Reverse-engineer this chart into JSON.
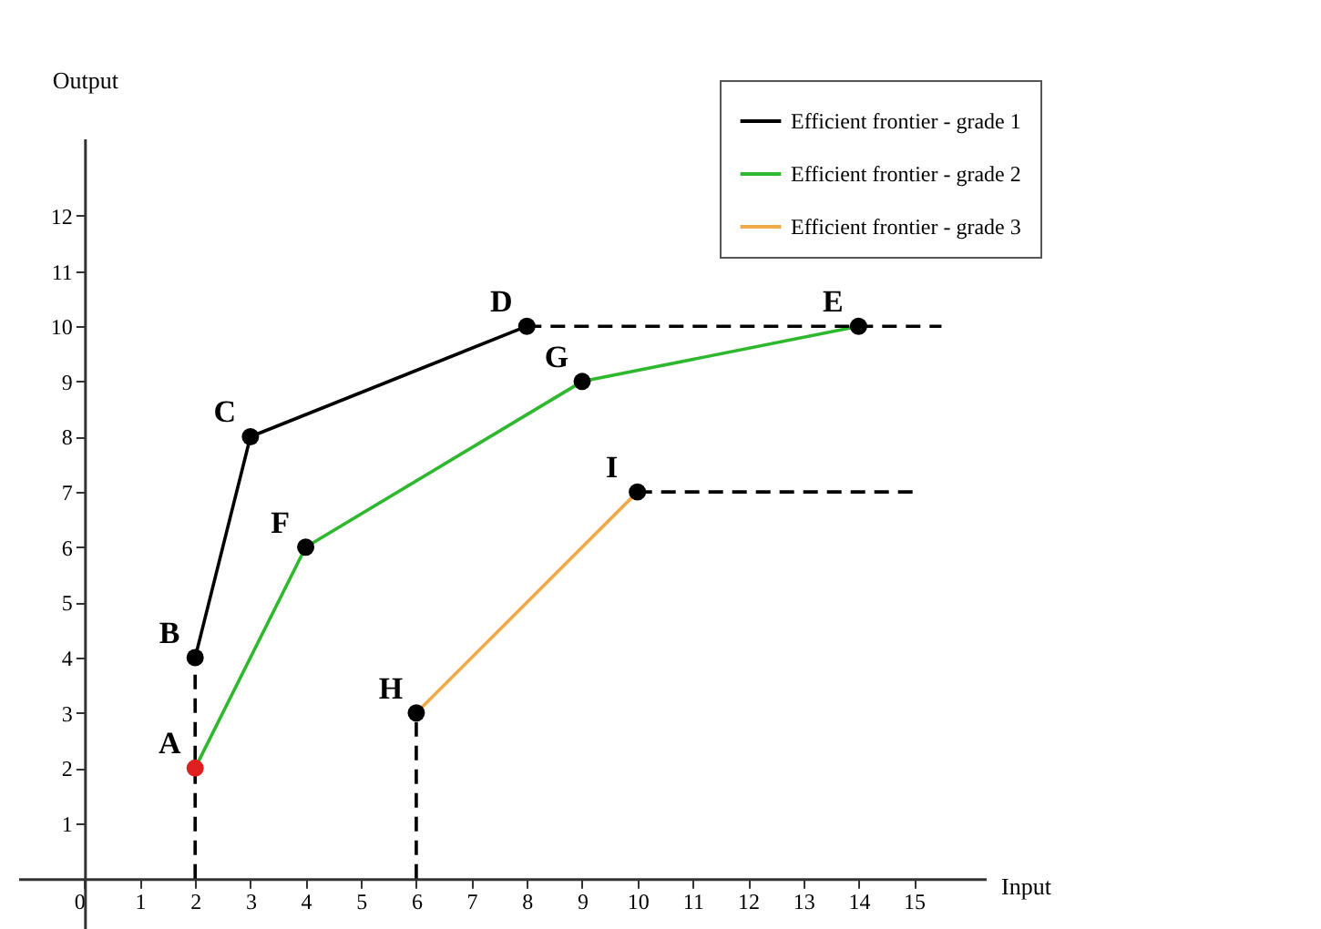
{
  "chart_data": {
    "type": "line",
    "xlabel": "Input",
    "ylabel": "Output",
    "xlim": [
      -1.2,
      16.3
    ],
    "ylim": [
      -2.1,
      13.4
    ],
    "xticks": [
      0,
      1,
      2,
      3,
      4,
      5,
      6,
      7,
      8,
      9,
      10,
      11,
      12,
      13,
      14,
      15
    ],
    "yticks": [
      1,
      2,
      3,
      4,
      5,
      6,
      7,
      8,
      9,
      10,
      11,
      12
    ],
    "legend": "top right",
    "series": [
      {
        "name": "Efficient frontier - grade 1",
        "color": "#000000",
        "x": [
          2,
          3,
          8
        ],
        "values": [
          4,
          8,
          10
        ]
      },
      {
        "name": "Efficient frontier - grade 2",
        "color": "#2db82d",
        "x": [
          2,
          4,
          9,
          14
        ],
        "values": [
          2,
          6,
          9,
          10
        ]
      },
      {
        "name": "Efficient frontier - grade 3",
        "color": "#f0a848",
        "x": [
          6,
          10
        ],
        "values": [
          3,
          7
        ]
      },
      {
        "type": "line",
        "color": "#000000",
        "line_style": "dashed",
        "x": [
          2,
          2
        ],
        "values": [
          0,
          4
        ]
      },
      {
        "type": "line",
        "color": "#000000",
        "line_style": "dashed",
        "x": [
          8,
          15.5
        ],
        "values": [
          10,
          10
        ]
      },
      {
        "type": "line",
        "color": "#000000",
        "line_style": "dashed",
        "x": [
          6,
          6
        ],
        "values": [
          0,
          3
        ]
      },
      {
        "type": "line",
        "color": "#000000",
        "line_style": "dashed",
        "x": [
          10,
          15
        ],
        "values": [
          7,
          7
        ]
      },
      {
        "type": "scatter",
        "x": [
          2,
          2,
          3,
          8,
          14,
          4,
          9,
          6,
          10
        ],
        "values": [
          2,
          4,
          8,
          10,
          10,
          6,
          9,
          3,
          7
        ],
        "colors": [
          "#e02020",
          "#000000",
          "#000000",
          "#000000",
          "#000000",
          "#000000",
          "#000000",
          "#000000",
          "#000000"
        ]
      }
    ],
    "annotations": [
      {
        "text": "A",
        "x": 2,
        "y": 2
      },
      {
        "text": "B",
        "x": 2,
        "y": 4
      },
      {
        "text": "C",
        "x": 3,
        "y": 8
      },
      {
        "text": "D",
        "x": 8,
        "y": 10
      },
      {
        "text": "E",
        "x": 14,
        "y": 10
      },
      {
        "text": "F",
        "x": 4,
        "y": 6
      },
      {
        "text": "G",
        "x": 9,
        "y": 9
      },
      {
        "text": "H",
        "x": 6,
        "y": 3
      },
      {
        "text": "I",
        "x": 10,
        "y": 7
      }
    ]
  }
}
